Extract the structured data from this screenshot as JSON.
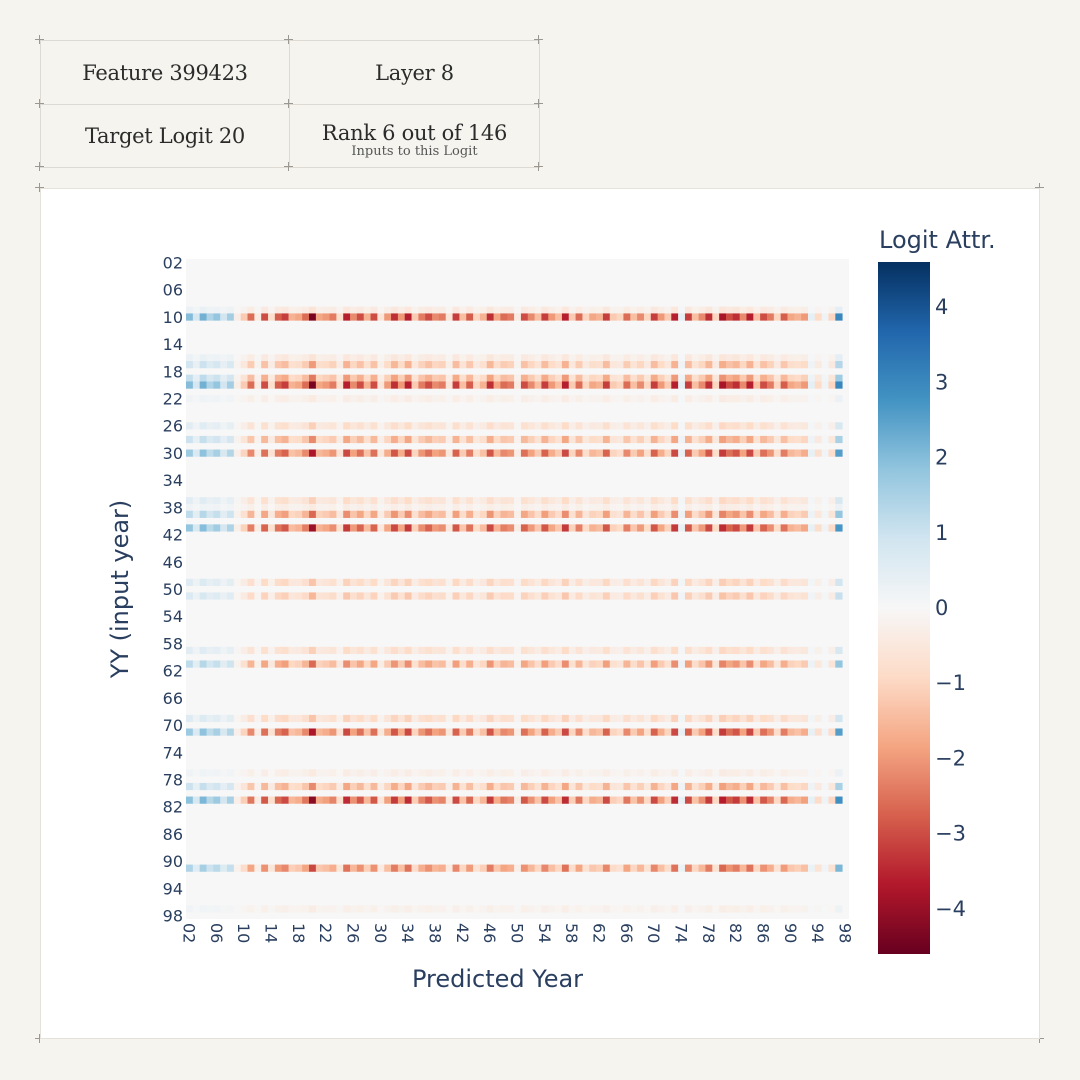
{
  "info": {
    "feature": "Feature 399423",
    "layer": "Layer 8",
    "target_logit": "Target Logit 20",
    "rank": "Rank 6 out of 146",
    "rank_sub": "Inputs to this Logit"
  },
  "colors": {
    "scale": [
      "#67001f",
      "#b2182b",
      "#d6604d",
      "#f4a582",
      "#fddbc7",
      "#f7f7f7",
      "#d1e5f0",
      "#92c5de",
      "#4393c3",
      "#2166ac",
      "#053061"
    ],
    "plot_bg": "#f7f7f7",
    "axis_text": "#2a3f5f"
  },
  "chart_data": {
    "type": "heatmap",
    "xlabel": "Predicted Year",
    "ylabel": "YY (input year)",
    "colorbar_title": "Logit Attr.",
    "zlim": [
      -4.6,
      4.6
    ],
    "colorbar_ticks": [
      "4",
      "3",
      "2",
      "1",
      "0",
      "−1",
      "−2",
      "−3",
      "−4"
    ],
    "colorbar_tick_values": [
      4,
      3,
      2,
      1,
      0,
      -1,
      -2,
      -3,
      -4
    ],
    "x_tick_labels": [
      "02",
      "06",
      "10",
      "14",
      "18",
      "22",
      "26",
      "30",
      "34",
      "38",
      "42",
      "46",
      "50",
      "54",
      "58",
      "62",
      "66",
      "70",
      "74",
      "78",
      "82",
      "86",
      "90",
      "94",
      "98"
    ],
    "y_tick_labels": [
      "02",
      "06",
      "10",
      "14",
      "18",
      "22",
      "26",
      "30",
      "34",
      "38",
      "42",
      "46",
      "50",
      "54",
      "58",
      "62",
      "66",
      "70",
      "74",
      "78",
      "82",
      "86",
      "90",
      "94",
      "98"
    ],
    "x_range": [
      2,
      98
    ],
    "y_range": [
      2,
      98
    ],
    "column_pattern_note": "per-column values follow base_row; each active row scales it by its factor",
    "base_row": [
      2.0,
      0.8,
      2.2,
      1.4,
      1.8,
      0.9,
      1.6,
      -0.3,
      -1.2,
      -2.6,
      -0.4,
      -3.0,
      -0.8,
      -2.8,
      -3.2,
      -1.6,
      -1.8,
      -2.6,
      -4.4,
      -1.8,
      -2.0,
      -2.4,
      -0.8,
      -3.6,
      -2.2,
      -3.0,
      -1.6,
      -3.0,
      -0.6,
      -2.0,
      -3.4,
      -2.0,
      -3.6,
      -1.2,
      -2.4,
      -3.0,
      -2.2,
      -2.4,
      -0.6,
      -3.2,
      -1.4,
      -2.8,
      -1.0,
      -1.6,
      -3.4,
      -1.8,
      -2.6,
      -2.4,
      -0.4,
      -3.0,
      -2.2,
      -1.4,
      -3.2,
      -2.0,
      -1.4,
      -3.6,
      -1.2,
      -2.6,
      -1.0,
      -1.8,
      -1.6,
      -3.2,
      -1.2,
      -1.0,
      -2.6,
      -1.4,
      -2.2,
      -1.0,
      -3.2,
      -2.0,
      -1.2,
      -3.6,
      0.4,
      -3.2,
      -1.4,
      -2.2,
      -3.4,
      -1.0,
      -3.8,
      -3.0,
      -3.4,
      -2.2,
      -3.6,
      -1.4,
      -3.0,
      -2.4,
      -1.0,
      -2.8,
      -1.8,
      -1.6,
      -2.0,
      0.4,
      -0.9,
      0.2,
      -1.0,
      3.0
    ],
    "active_rows": [
      {
        "year": 9,
        "factor": 0.15
      },
      {
        "year": 10,
        "factor": 1.0
      },
      {
        "year": 16,
        "factor": 0.15
      },
      {
        "year": 17,
        "factor": 0.45
      },
      {
        "year": 19,
        "factor": 0.55
      },
      {
        "year": 20,
        "factor": 1.0
      },
      {
        "year": 22,
        "factor": 0.1
      },
      {
        "year": 26,
        "factor": 0.25
      },
      {
        "year": 28,
        "factor": 0.5
      },
      {
        "year": 30,
        "factor": 0.85
      },
      {
        "year": 37,
        "factor": 0.25
      },
      {
        "year": 38,
        "factor": 0.1
      },
      {
        "year": 39,
        "factor": 0.6
      },
      {
        "year": 41,
        "factor": 0.9
      },
      {
        "year": 49,
        "factor": 0.3
      },
      {
        "year": 51,
        "factor": 0.35
      },
      {
        "year": 59,
        "factor": 0.25
      },
      {
        "year": 61,
        "factor": 0.6
      },
      {
        "year": 69,
        "factor": 0.3
      },
      {
        "year": 71,
        "factor": 0.85
      },
      {
        "year": 77,
        "factor": 0.1
      },
      {
        "year": 79,
        "factor": 0.5
      },
      {
        "year": 81,
        "factor": 0.95
      },
      {
        "year": 91,
        "factor": 0.7
      },
      {
        "year": 97,
        "factor": 0.08
      }
    ]
  }
}
